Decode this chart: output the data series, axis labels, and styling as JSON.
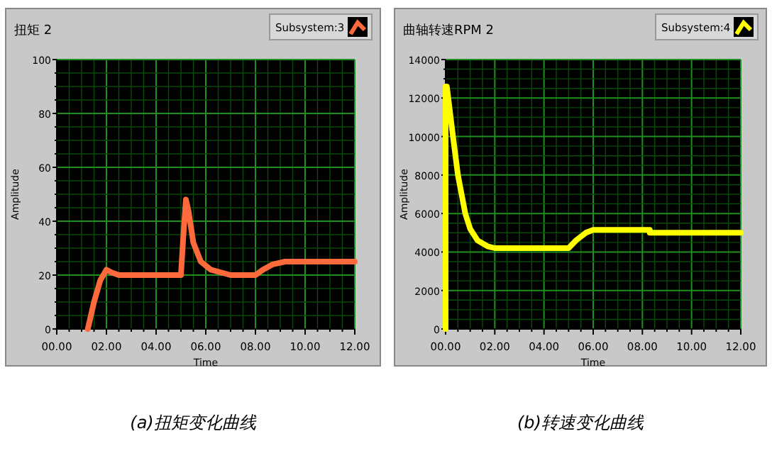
{
  "chart_data": [
    {
      "type": "line",
      "title": "扭矩 2",
      "xlabel": "Time",
      "ylabel": "Amplitude",
      "x": [
        1.25,
        1.5,
        1.75,
        2.0,
        2.2,
        2.5,
        5.0,
        5.1,
        5.2,
        5.3,
        5.5,
        5.8,
        6.2,
        7.0,
        8.0,
        8.3,
        8.7,
        9.2,
        12
      ],
      "series": [
        {
          "name": "Subsystem:3",
          "color": "#ff6a3d",
          "values": [
            0,
            10,
            18,
            22,
            21,
            20,
            20,
            35,
            48,
            44,
            32,
            25,
            22,
            20,
            20,
            22,
            24,
            25,
            25
          ]
        }
      ],
      "xlim": [
        0,
        12
      ],
      "ylim": [
        0,
        100
      ],
      "xticks": [
        {
          "value": 0,
          "label": "00.00"
        },
        {
          "value": 0.5,
          "label": null
        },
        {
          "value": 1,
          "label": null
        },
        {
          "value": 1.5,
          "label": null
        },
        {
          "value": 2,
          "label": "02.00"
        },
        {
          "value": 2.5,
          "label": null
        },
        {
          "value": 3,
          "label": null
        },
        {
          "value": 3.5,
          "label": null
        },
        {
          "value": 4,
          "label": "04.00"
        },
        {
          "value": 4.5,
          "label": null
        },
        {
          "value": 5,
          "label": null
        },
        {
          "value": 5.5,
          "label": null
        },
        {
          "value": 6,
          "label": "06.00"
        },
        {
          "value": 6.5,
          "label": null
        },
        {
          "value": 7,
          "label": null
        },
        {
          "value": 7.5,
          "label": null
        },
        {
          "value": 8,
          "label": "08.00"
        },
        {
          "value": 8.5,
          "label": null
        },
        {
          "value": 9,
          "label": null
        },
        {
          "value": 9.5,
          "label": null
        },
        {
          "value": 10,
          "label": "10.00"
        },
        {
          "value": 10.5,
          "label": null
        },
        {
          "value": 11,
          "label": null
        },
        {
          "value": 11.5,
          "label": null
        },
        {
          "value": 12,
          "label": "12.00"
        }
      ],
      "yticks": [
        0,
        {
          "value": 5,
          "label": null
        },
        {
          "value": 10,
          "label": null
        },
        {
          "value": 15,
          "label": null
        },
        20,
        {
          "value": 25,
          "label": null
        },
        {
          "value": 30,
          "label": null
        },
        {
          "value": 35,
          "label": null
        },
        40,
        {
          "value": 45,
          "label": null
        },
        {
          "value": 50,
          "label": null
        },
        {
          "value": 55,
          "label": null
        },
        60,
        {
          "value": 65,
          "label": null
        },
        {
          "value": 70,
          "label": null
        },
        {
          "value": 75,
          "label": null
        },
        80,
        {
          "value": 85,
          "label": null
        },
        {
          "value": 90,
          "label": null
        },
        {
          "value": 95,
          "label": null
        },
        100
      ],
      "grid": true,
      "legend": "top right",
      "annotations": [
        "(a)扭矩变化曲线"
      ]
    },
    {
      "type": "line",
      "title": "曲轴转速RPM 2",
      "xlabel": "Time",
      "ylabel": "Amplitude",
      "x": [
        0,
        0,
        0.05,
        0.3,
        0.5,
        0.8,
        1.0,
        1.3,
        1.7,
        2.0,
        5.0,
        5.3,
        5.7,
        6.0,
        8.3,
        8.3,
        12
      ],
      "series": [
        {
          "name": "Subsystem:4",
          "color": "#ffff00",
          "values": [
            0,
            12600,
            12600,
            10000,
            8000,
            6000,
            5200,
            4600,
            4300,
            4200,
            4200,
            4600,
            5000,
            5150,
            5150,
            5000,
            5000
          ]
        }
      ],
      "xlim": [
        0,
        12
      ],
      "ylim": [
        0,
        14000
      ],
      "xticks": [
        {
          "value": 0,
          "label": "00.00"
        },
        {
          "value": 0.5,
          "label": null
        },
        {
          "value": 1,
          "label": null
        },
        {
          "value": 1.5,
          "label": null
        },
        {
          "value": 2,
          "label": "02.00"
        },
        {
          "value": 2.5,
          "label": null
        },
        {
          "value": 3,
          "label": null
        },
        {
          "value": 3.5,
          "label": null
        },
        {
          "value": 4,
          "label": "04.00"
        },
        {
          "value": 4.5,
          "label": null
        },
        {
          "value": 5,
          "label": null
        },
        {
          "value": 5.5,
          "label": null
        },
        {
          "value": 6,
          "label": "06.00"
        },
        {
          "value": 6.5,
          "label": null
        },
        {
          "value": 7,
          "label": null
        },
        {
          "value": 7.5,
          "label": null
        },
        {
          "value": 8,
          "label": "08.00"
        },
        {
          "value": 8.5,
          "label": null
        },
        {
          "value": 9,
          "label": null
        },
        {
          "value": 9.5,
          "label": null
        },
        {
          "value": 10,
          "label": "10.00"
        },
        {
          "value": 10.5,
          "label": null
        },
        {
          "value": 11,
          "label": null
        },
        {
          "value": 11.5,
          "label": null
        },
        {
          "value": 12,
          "label": "12.00"
        }
      ],
      "yticks": [
        0,
        {
          "value": 500,
          "label": null
        },
        {
          "value": 1000,
          "label": null
        },
        {
          "value": 1500,
          "label": null
        },
        2000,
        {
          "value": 2500,
          "label": null
        },
        {
          "value": 3000,
          "label": null
        },
        {
          "value": 3500,
          "label": null
        },
        4000,
        {
          "value": 4500,
          "label": null
        },
        {
          "value": 5000,
          "label": null
        },
        {
          "value": 5500,
          "label": null
        },
        6000,
        {
          "value": 6500,
          "label": null
        },
        {
          "value": 7000,
          "label": null
        },
        {
          "value": 7500,
          "label": null
        },
        8000,
        {
          "value": 8500,
          "label": null
        },
        {
          "value": 9000,
          "label": null
        },
        {
          "value": 9500,
          "label": null
        },
        10000,
        {
          "value": 10500,
          "label": null
        },
        {
          "value": 11000,
          "label": null
        },
        {
          "value": 11500,
          "label": null
        },
        12000,
        {
          "value": 12500,
          "label": null
        },
        {
          "value": 13000,
          "label": null
        },
        {
          "value": 13500,
          "label": null
        },
        14000
      ],
      "grid": true,
      "legend": "top right",
      "annotations": [
        "(b)转速变化曲线"
      ]
    }
  ]
}
